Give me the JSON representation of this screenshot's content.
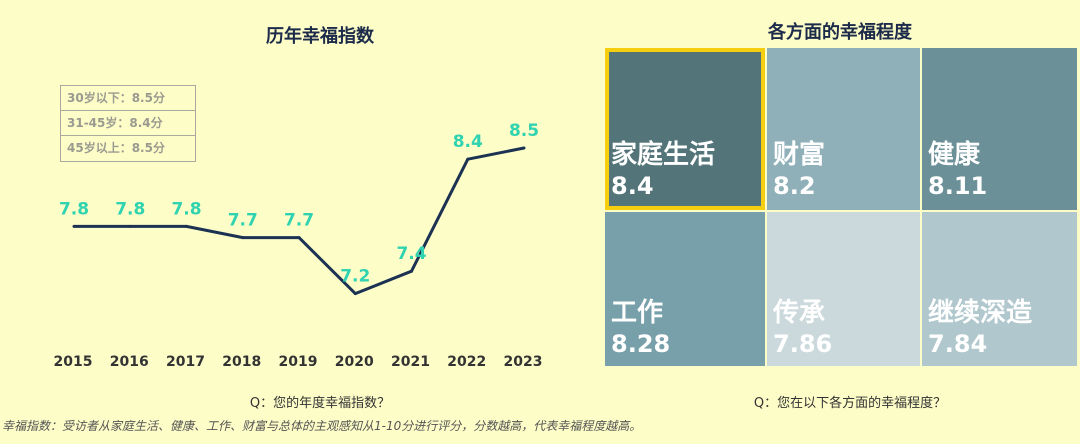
{
  "left": {
    "title": "历年幸福指数",
    "legend": [
      "30岁以下：8.5分",
      "31-45岁：8.4分",
      "45岁以上：8.5分"
    ],
    "question": "Q：您的年度幸福指数？"
  },
  "right": {
    "title": "各方面的幸福程度",
    "question": "Q：您在以下各方面的幸福程度？"
  },
  "footnote": "幸福指数：受访者从家庭生活、健康、工作、财富与总体的主观感知从1-10分进行评分，分数越高，代表幸福程度越高。",
  "colors": {
    "line": "#1c3253",
    "point_label": "#2fd3b0",
    "axis_label": "#333333",
    "highlight": "#f5cf0f"
  },
  "chart_data": [
    {
      "type": "line",
      "title": "历年幸福指数",
      "x": [
        "2015",
        "2016",
        "2017",
        "2018",
        "2019",
        "2020",
        "2021",
        "2022",
        "2023"
      ],
      "series": [
        {
          "values": [
            7.8,
            7.8,
            7.8,
            7.7,
            7.7,
            7.2,
            7.4,
            8.4,
            8.5
          ]
        }
      ],
      "labels": [
        "7.8",
        "7.8",
        "7.8",
        "7.7",
        "7.7",
        "7.2",
        "7.4",
        "8.4",
        "8.5"
      ],
      "ylim": [
        6.5,
        9.0
      ],
      "grid": false
    },
    {
      "type": "heatmap",
      "title": "各方面的幸福程度",
      "cells": [
        {
          "label": "家庭生活",
          "value": "8.4",
          "color": "#537479",
          "highlight": true
        },
        {
          "label": "财富",
          "value": "8.2",
          "color": "#8fb0b8"
        },
        {
          "label": "健康",
          "value": "8.11",
          "color": "#6b9098"
        },
        {
          "label": "工作",
          "value": "8.28",
          "color": "#77a0aa"
        },
        {
          "label": "传承",
          "value": "7.86",
          "color": "#cbd9dd"
        },
        {
          "label": "继续深造",
          "value": "7.84",
          "color": "#afc7cd"
        }
      ]
    }
  ]
}
